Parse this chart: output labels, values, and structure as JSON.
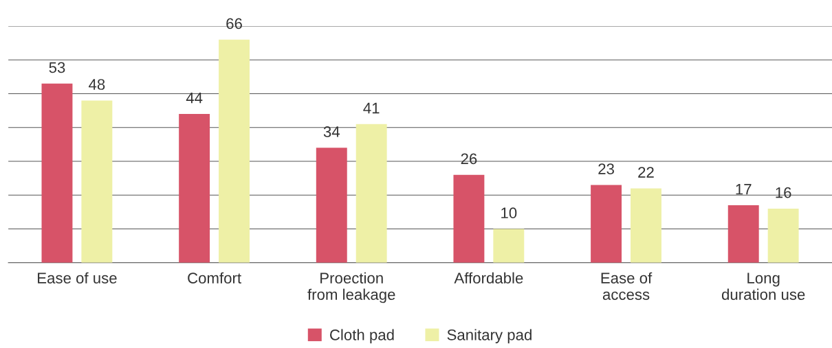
{
  "chart_data": {
    "type": "bar",
    "categories": [
      "Ease of use",
      "Comfort",
      "Proection\nfrom leakage",
      "Affordable",
      "Ease of\naccess",
      "Long\nduration use"
    ],
    "series": [
      {
        "name": "Cloth pad",
        "color": "#d75368",
        "values": [
          53,
          44,
          34,
          26,
          23,
          17
        ]
      },
      {
        "name": "Sanitary pad",
        "color": "#eef0a6",
        "values": [
          48,
          66,
          41,
          10,
          22,
          16
        ]
      }
    ],
    "ylim": [
      0,
      70
    ],
    "yticks": [
      {
        "value": 0,
        "label": null
      },
      {
        "value": 10,
        "label": null
      },
      {
        "value": 20,
        "label": null
      },
      {
        "value": 30,
        "label": null
      },
      {
        "value": 40,
        "label": null
      },
      {
        "value": 50,
        "label": null
      },
      {
        "value": 60,
        "label": null
      },
      {
        "value": 70,
        "label": null
      }
    ],
    "grid": "y",
    "tick_labels": "x",
    "data_labels": true,
    "legend": "bottom"
  }
}
